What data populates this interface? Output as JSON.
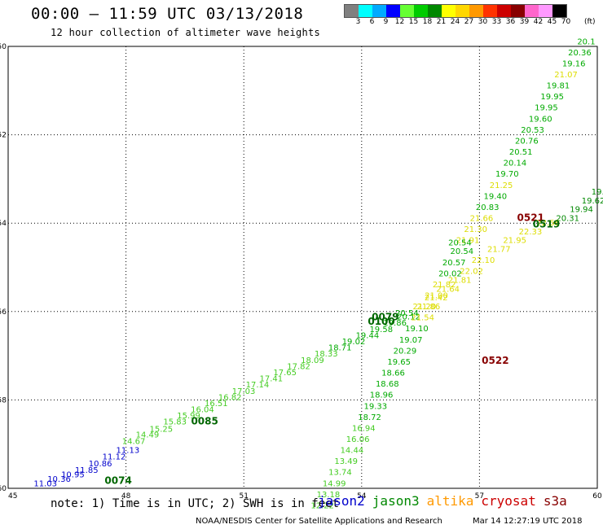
{
  "header": {
    "title": "00:00 – 11:59 UTC 03/13/2018",
    "subtitle": "12 hour collection of altimeter wave heights"
  },
  "legend": {
    "swatches": [
      "#808080",
      "#00ffff",
      "#00aaff",
      "#0000ff",
      "#66ff33",
      "#00cc00",
      "#008800",
      "#ffff00",
      "#ffd700",
      "#ff9900",
      "#ff3300",
      "#cc0000",
      "#880000",
      "#ff66cc",
      "#ff99ff",
      "#000000"
    ],
    "labels": [
      "3",
      "6",
      "9",
      "12",
      "15",
      "18",
      "21",
      "24",
      "27",
      "30",
      "33",
      "36",
      "39",
      "42",
      "45",
      "70"
    ],
    "unit": "(ft)"
  },
  "note": "note: 1) Time is in UTC; 2) SWH is in feet",
  "satellites": [
    {
      "name": "jason2",
      "color": "#0000cc"
    },
    {
      "name": "jason3",
      "color": "#008800"
    },
    {
      "name": "altika",
      "color": "#ff9900"
    },
    {
      "name": "cryosat",
      "color": "#cc0000"
    },
    {
      "name": "s3a",
      "color": "#880000"
    }
  ],
  "footer": "NOAA/NESDIS Center for Satellite Applications and Research",
  "footer_date": "Mar 14 12:27:19 UTC 2018",
  "chart_data": {
    "type": "scatter",
    "x_ticks": [
      45,
      48,
      51,
      54,
      57,
      60
    ],
    "y_ticks": [
      -50,
      -52,
      -54,
      -56,
      -58,
      -60
    ],
    "xlim": [
      45,
      60
    ],
    "ylim": [
      -60,
      -50
    ],
    "grid": true,
    "series": [
      {
        "name": "jason3",
        "points": [
          {
            "x": 59.95,
            "y": -49.95,
            "label": "20.1"
          },
          {
            "x": 59.85,
            "y": -50.2,
            "label": "20.36"
          },
          {
            "x": 59.7,
            "y": -50.45,
            "label": "19.16"
          },
          {
            "x": 59.5,
            "y": -50.7,
            "label": "21.07"
          },
          {
            "x": 59.3,
            "y": -50.95,
            "label": "19.81"
          },
          {
            "x": 59.15,
            "y": -51.2,
            "label": "19.95"
          },
          {
            "x": 59.0,
            "y": -51.45,
            "label": "19.95"
          },
          {
            "x": 58.85,
            "y": -51.7,
            "label": "19.60"
          },
          {
            "x": 58.65,
            "y": -51.95,
            "label": "20.53"
          },
          {
            "x": 58.5,
            "y": -52.2,
            "label": "20.76"
          },
          {
            "x": 58.35,
            "y": -52.45,
            "label": "20.51"
          },
          {
            "x": 58.2,
            "y": -52.7,
            "label": "20.14"
          },
          {
            "x": 58.0,
            "y": -52.95,
            "label": "19.70"
          },
          {
            "x": 57.85,
            "y": -53.2,
            "label": "21.25"
          },
          {
            "x": 57.7,
            "y": -53.45,
            "label": "19.40"
          },
          {
            "x": 57.5,
            "y": -53.7,
            "label": "20.83"
          },
          {
            "x": 57.35,
            "y": -53.95,
            "label": "21.66"
          },
          {
            "x": 57.2,
            "y": -54.2,
            "label": "21.30"
          },
          {
            "x": 57.0,
            "y": -54.45,
            "label": "21.91"
          },
          {
            "x": 56.85,
            "y": -54.7,
            "label": "20.54"
          },
          {
            "x": 56.65,
            "y": -54.95,
            "label": "20.57"
          },
          {
            "x": 56.55,
            "y": -55.2,
            "label": "20.02"
          },
          {
            "x": 56.4,
            "y": -55.45,
            "label": "21.82"
          },
          {
            "x": 56.2,
            "y": -55.7,
            "label": "21.00"
          },
          {
            "x": 56.0,
            "y": -55.95,
            "label": "21.86"
          },
          {
            "x": 55.85,
            "y": -56.2,
            "label": "21.54"
          },
          {
            "x": 55.7,
            "y": -56.45,
            "label": "19.10"
          },
          {
            "x": 55.55,
            "y": -56.7,
            "label": "19.07"
          },
          {
            "x": 55.4,
            "y": -56.95,
            "label": "20.29"
          },
          {
            "x": 55.25,
            "y": -57.2,
            "label": "19.65"
          },
          {
            "x": 55.1,
            "y": -57.45,
            "label": "18.66"
          },
          {
            "x": 54.95,
            "y": -57.7,
            "label": "18.68"
          },
          {
            "x": 54.8,
            "y": -57.95,
            "label": "18.96"
          },
          {
            "x": 54.65,
            "y": -58.2,
            "label": "19.33"
          },
          {
            "x": 54.5,
            "y": -58.45,
            "label": "18.72"
          },
          {
            "x": 54.35,
            "y": -58.7,
            "label": "16.94"
          },
          {
            "x": 54.2,
            "y": -58.95,
            "label": "16.06"
          },
          {
            "x": 54.05,
            "y": -59.2,
            "label": "14.44"
          },
          {
            "x": 53.9,
            "y": -59.45,
            "label": "13.49"
          },
          {
            "x": 53.75,
            "y": -59.7,
            "label": "13.74"
          },
          {
            "x": 53.6,
            "y": -59.95,
            "label": "14.99"
          },
          {
            "x": 53.45,
            "y": -60.2,
            "label": "13.18"
          },
          {
            "x": 53.3,
            "y": -60.45,
            "label": "12.22"
          },
          {
            "x": 55.45,
            "y": -56.1,
            "label": "20.54"
          },
          {
            "x": 56.8,
            "y": -54.5,
            "label": "20.54"
          }
        ]
      },
      {
        "name": "time_labels",
        "points": [
          {
            "x": 58.65,
            "y": -53.95,
            "label": "0521"
          },
          {
            "x": 59.05,
            "y": -54.1,
            "label": "0519"
          },
          {
            "x": 57.75,
            "y": -57.18,
            "label": "0522"
          },
          {
            "x": 54.85,
            "y": -56.3,
            "label": "0100"
          },
          {
            "x": 54.95,
            "y": -56.2,
            "label": "0079"
          },
          {
            "x": 50.35,
            "y": -58.55,
            "label": "0085"
          },
          {
            "x": 48.15,
            "y": -59.9,
            "label": "0074"
          }
        ]
      }
    ]
  }
}
